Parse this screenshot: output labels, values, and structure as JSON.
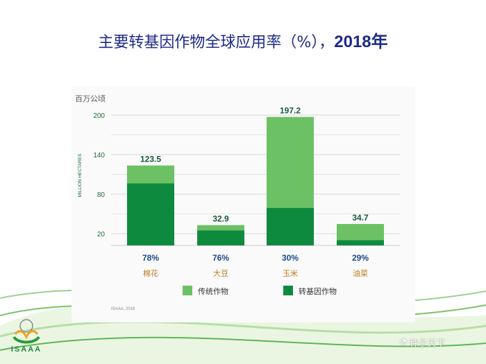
{
  "title": {
    "main": "主要转基因作物全球应用率（%），",
    "year": "2018年"
  },
  "colors": {
    "gm": "#0e8a3e",
    "conventional": "#6cc164",
    "pct": "#1a4a8a",
    "crop": "#c07a22",
    "title": "#1e2a8a"
  },
  "chart_data": {
    "type": "bar",
    "stacked": true,
    "categories": [
      "棉花",
      "大豆",
      "玉米",
      "油菜"
    ],
    "totals": [
      123.5,
      32.9,
      197.2,
      34.7
    ],
    "total_labels": [
      "123.5",
      "32.9",
      "197.2",
      "34.7"
    ],
    "gm_share_labels": [
      "78%",
      "76%",
      "30%",
      "29%"
    ],
    "series": [
      {
        "name": "转基因作物",
        "values": [
          96.3,
          25.0,
          59.2,
          10.1
        ]
      },
      {
        "name": "传统作物",
        "values": [
          27.2,
          7.9,
          138.0,
          24.6
        ]
      }
    ],
    "ylabel": "MILLION HECTARES",
    "unit_label": "百万公顷",
    "yticks": [
      20,
      80,
      140,
      200
    ],
    "ylim": [
      0,
      200
    ],
    "legend": [
      "传统作物",
      "转基因作物"
    ],
    "legend_placement": "bottom",
    "grid": true,
    "source": "ISAAA, 2018"
  },
  "branding": {
    "logo": "ISAAA",
    "watermark": "种子天下"
  }
}
